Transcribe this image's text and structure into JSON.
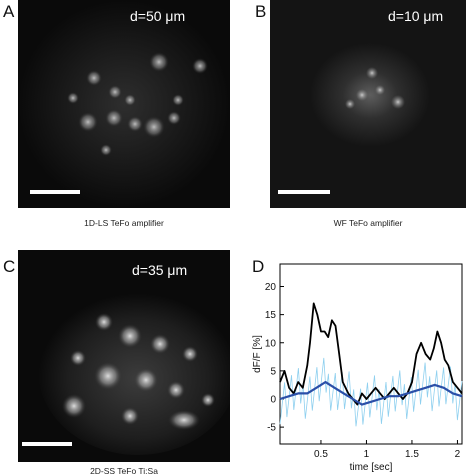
{
  "panels": {
    "a": {
      "letter": "A",
      "depth": "d=50 μm",
      "caption": "1D-LS TeFo amplifier"
    },
    "b": {
      "letter": "B",
      "depth": "d=10 μm",
      "caption": "WF TeFo amplifier"
    },
    "c": {
      "letter": "C",
      "depth": "d=35 μm",
      "caption": "2D-SS TeFo Ti:Sa"
    },
    "d": {
      "letter": "D"
    }
  },
  "chart_data": {
    "type": "line",
    "xlabel": "time [sec]",
    "ylabel": "dF/F [%]",
    "xlim": [
      0.05,
      2.05
    ],
    "ylim": [
      -8,
      24
    ],
    "xticks": [
      0.5,
      1,
      1.5,
      2
    ],
    "xtick_labels": [
      "0.5",
      "1",
      "1.5",
      "2"
    ],
    "yticks": [
      -5,
      0,
      5,
      10,
      15,
      20
    ],
    "ytick_labels": [
      "-5",
      "0",
      "5",
      "10",
      "15",
      "20"
    ],
    "series": [
      {
        "color": "#000000",
        "x": [
          0.05,
          0.1,
          0.15,
          0.2,
          0.25,
          0.3,
          0.35,
          0.38,
          0.42,
          0.46,
          0.5,
          0.54,
          0.58,
          0.62,
          0.66,
          0.7,
          0.74,
          0.8,
          0.85,
          0.9,
          0.95,
          1.0,
          1.05,
          1.1,
          1.15,
          1.2,
          1.25,
          1.3,
          1.35,
          1.4,
          1.45,
          1.5,
          1.55,
          1.6,
          1.65,
          1.7,
          1.74,
          1.78,
          1.82,
          1.86,
          1.9,
          1.95,
          2.0,
          2.05
        ],
        "y": [
          3,
          5,
          2,
          1,
          3,
          2,
          6,
          10,
          17,
          15,
          12,
          12,
          11,
          14,
          13,
          8,
          3,
          1,
          0,
          -1,
          1,
          0,
          1,
          2,
          1,
          0,
          1,
          2,
          1,
          0,
          1,
          3,
          8,
          10,
          8,
          7,
          9,
          12,
          10,
          7,
          6,
          3,
          2,
          1
        ]
      },
      {
        "color": "#2a4fa8",
        "x": [
          0.05,
          0.15,
          0.25,
          0.35,
          0.45,
          0.55,
          0.65,
          0.75,
          0.85,
          0.95,
          1.05,
          1.15,
          1.25,
          1.35,
          1.45,
          1.55,
          1.65,
          1.75,
          1.85,
          1.95,
          2.05
        ],
        "y": [
          0,
          0.5,
          1,
          1,
          2,
          3,
          2,
          1,
          0,
          -1,
          -0.5,
          0,
          0.5,
          0.5,
          1,
          1.5,
          2,
          2.5,
          2,
          1,
          0.5
        ]
      }
    ]
  }
}
